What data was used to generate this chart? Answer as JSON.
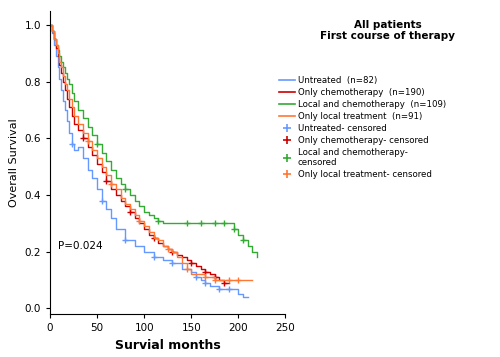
{
  "title_line1": "All patients",
  "title_line2": "First course of therapy",
  "xlabel": "Survial months",
  "ylabel": "Overall Survival",
  "pvalue_text": "P=0.024",
  "xlim": [
    0,
    250
  ],
  "ylim": [
    -0.02,
    1.05
  ],
  "xticks": [
    0,
    50,
    100,
    150,
    200,
    250
  ],
  "yticks": [
    0.0,
    0.2,
    0.4,
    0.6,
    0.8,
    1.0
  ],
  "groups": {
    "untreated": {
      "label": "Untreated  (n=82)",
      "color": "#6699ff",
      "km_times": [
        0,
        2,
        4,
        6,
        8,
        10,
        12,
        14,
        16,
        18,
        20,
        23,
        26,
        30,
        35,
        40,
        45,
        50,
        55,
        60,
        65,
        70,
        80,
        90,
        100,
        110,
        120,
        130,
        140,
        150,
        155,
        160,
        165,
        170,
        175,
        180,
        185,
        190,
        200,
        205,
        210
      ],
      "km_surv": [
        1.0,
        0.97,
        0.93,
        0.89,
        0.85,
        0.81,
        0.77,
        0.73,
        0.7,
        0.66,
        0.62,
        0.58,
        0.56,
        0.57,
        0.53,
        0.49,
        0.46,
        0.42,
        0.38,
        0.35,
        0.32,
        0.28,
        0.24,
        0.22,
        0.2,
        0.18,
        0.17,
        0.16,
        0.14,
        0.13,
        0.11,
        0.1,
        0.09,
        0.08,
        0.08,
        0.07,
        0.07,
        0.07,
        0.05,
        0.04,
        0.04
      ],
      "censor_times": [
        23,
        55,
        80,
        110,
        130,
        155,
        165,
        180,
        190
      ],
      "censor_surv": [
        0.58,
        0.38,
        0.24,
        0.18,
        0.16,
        0.11,
        0.09,
        0.07,
        0.07
      ]
    },
    "chemo": {
      "label": "Only chemotherapy  (n=190)",
      "color": "#cc0000",
      "km_times": [
        0,
        2,
        4,
        6,
        8,
        10,
        12,
        14,
        16,
        18,
        20,
        23,
        26,
        30,
        35,
        40,
        45,
        50,
        55,
        60,
        65,
        70,
        75,
        80,
        85,
        90,
        95,
        100,
        105,
        110,
        115,
        120,
        125,
        130,
        135,
        140,
        145,
        150,
        155,
        160,
        165,
        170,
        175,
        180,
        185,
        190
      ],
      "km_surv": [
        1.0,
        0.98,
        0.95,
        0.92,
        0.89,
        0.86,
        0.83,
        0.8,
        0.77,
        0.74,
        0.71,
        0.68,
        0.65,
        0.63,
        0.6,
        0.57,
        0.54,
        0.51,
        0.48,
        0.45,
        0.42,
        0.4,
        0.38,
        0.36,
        0.34,
        0.32,
        0.3,
        0.28,
        0.26,
        0.25,
        0.23,
        0.22,
        0.21,
        0.2,
        0.19,
        0.18,
        0.17,
        0.16,
        0.15,
        0.14,
        0.13,
        0.12,
        0.11,
        0.1,
        0.09,
        0.09
      ],
      "censor_times": [
        35,
        60,
        85,
        110,
        130,
        150,
        165,
        175,
        185
      ],
      "censor_surv": [
        0.6,
        0.45,
        0.34,
        0.25,
        0.2,
        0.16,
        0.13,
        0.11,
        0.09
      ]
    },
    "local_chemo": {
      "label": "Local and chemotherapy  (n=109)",
      "color": "#33aa33",
      "km_times": [
        0,
        2,
        4,
        6,
        8,
        10,
        12,
        14,
        16,
        18,
        20,
        23,
        26,
        30,
        35,
        40,
        45,
        50,
        55,
        60,
        65,
        70,
        75,
        80,
        85,
        90,
        95,
        100,
        105,
        110,
        115,
        120,
        130,
        140,
        145,
        150,
        155,
        160,
        165,
        170,
        175,
        180,
        185,
        190,
        195,
        200,
        205,
        210,
        215,
        220
      ],
      "km_surv": [
        1.0,
        0.98,
        0.95,
        0.93,
        0.91,
        0.89,
        0.87,
        0.85,
        0.83,
        0.81,
        0.79,
        0.76,
        0.73,
        0.7,
        0.67,
        0.64,
        0.61,
        0.58,
        0.55,
        0.52,
        0.49,
        0.46,
        0.44,
        0.42,
        0.4,
        0.38,
        0.36,
        0.34,
        0.33,
        0.32,
        0.31,
        0.3,
        0.3,
        0.3,
        0.3,
        0.3,
        0.3,
        0.3,
        0.3,
        0.3,
        0.3,
        0.3,
        0.3,
        0.3,
        0.28,
        0.26,
        0.24,
        0.22,
        0.2,
        0.18
      ],
      "censor_times": [
        50,
        80,
        115,
        145,
        160,
        175,
        185,
        195,
        205
      ],
      "censor_surv": [
        0.58,
        0.42,
        0.31,
        0.3,
        0.3,
        0.3,
        0.3,
        0.28,
        0.24
      ]
    },
    "local": {
      "label": "Only local treatment  (n=91)",
      "color": "#ff7733",
      "km_times": [
        0,
        2,
        4,
        6,
        8,
        10,
        12,
        14,
        16,
        18,
        20,
        23,
        26,
        30,
        35,
        40,
        45,
        50,
        55,
        60,
        65,
        70,
        75,
        80,
        85,
        90,
        95,
        100,
        105,
        110,
        115,
        120,
        125,
        130,
        135,
        140,
        145,
        150,
        155,
        160,
        165,
        170,
        175,
        180,
        190,
        200,
        210,
        215
      ],
      "km_surv": [
        1.0,
        0.98,
        0.95,
        0.93,
        0.9,
        0.87,
        0.85,
        0.82,
        0.79,
        0.77,
        0.74,
        0.71,
        0.68,
        0.65,
        0.62,
        0.59,
        0.56,
        0.53,
        0.5,
        0.47,
        0.44,
        0.42,
        0.39,
        0.37,
        0.35,
        0.33,
        0.31,
        0.29,
        0.27,
        0.25,
        0.24,
        0.22,
        0.21,
        0.2,
        0.18,
        0.16,
        0.14,
        0.12,
        0.12,
        0.12,
        0.11,
        0.11,
        0.1,
        0.1,
        0.1,
        0.1,
        0.1,
        0.1
      ],
      "censor_times": [
        40,
        65,
        95,
        125,
        145,
        165,
        175,
        190,
        200
      ],
      "censor_surv": [
        0.59,
        0.44,
        0.31,
        0.21,
        0.14,
        0.11,
        0.1,
        0.1,
        0.1
      ]
    }
  },
  "legend_items": [
    {
      "key": "untreated",
      "label": "Untreated  (n=82)",
      "type": "line"
    },
    {
      "key": "chemo",
      "label": "Only chemotherapy  (n=190)",
      "type": "line"
    },
    {
      "key": "local_chemo",
      "label": "Local and chemotherapy  (n=109)",
      "type": "line"
    },
    {
      "key": "local",
      "label": "Only local treatment  (n=91)",
      "type": "line"
    },
    {
      "key": "untreated",
      "label": "Untreated- censored",
      "type": "marker"
    },
    {
      "key": "chemo",
      "label": "Only chemotherapy- censored",
      "type": "marker"
    },
    {
      "key": "local_chemo",
      "label": "Local and chemotherapy-\ncensored",
      "type": "marker"
    },
    {
      "key": "local",
      "label": "Only local treatment- censored",
      "type": "marker"
    }
  ]
}
